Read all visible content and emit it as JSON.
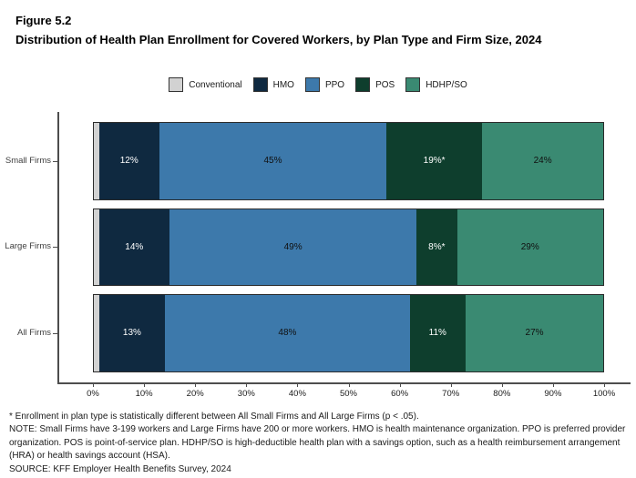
{
  "figure": {
    "number": "Figure 5.2",
    "title": "Distribution of Health Plan Enrollment for Covered Workers, by Plan Type and Firm Size, 2024"
  },
  "legend": [
    {
      "label": "Conventional",
      "color": "#d2d2d2"
    },
    {
      "label": "HMO",
      "color": "#0f2940"
    },
    {
      "label": "PPO",
      "color": "#3d79ab"
    },
    {
      "label": "POS",
      "color": "#0e3e2d"
    },
    {
      "label": "HDHP/SO",
      "color": "#3a8a72"
    }
  ],
  "chart_data": {
    "type": "bar",
    "orientation": "horizontal-stacked",
    "title": "Distribution of Health Plan Enrollment for Covered Workers, by Plan Type and Firm Size, 2024",
    "categories": [
      "Small Firms",
      "Large Firms",
      "All Firms"
    ],
    "series": [
      {
        "name": "Conventional",
        "color": "#d2d2d2",
        "text_color": "#1a1a1a",
        "values": [
          1,
          1,
          1
        ],
        "labels": [
          "",
          "",
          ""
        ]
      },
      {
        "name": "HMO",
        "color": "#0f2940",
        "text_color": "#ffffff",
        "values": [
          12,
          14,
          13
        ],
        "labels": [
          "12%",
          "14%",
          "13%"
        ]
      },
      {
        "name": "PPO",
        "color": "#3d79ab",
        "text_color": "#101010",
        "values": [
          45,
          49,
          48
        ],
        "labels": [
          "45%",
          "49%",
          "48%"
        ]
      },
      {
        "name": "POS",
        "color": "#0e3e2d",
        "text_color": "#ffffff",
        "values": [
          19,
          8,
          11
        ],
        "labels": [
          "19%*",
          "8%*",
          "11%"
        ]
      },
      {
        "name": "HDHP/SO",
        "color": "#3a8a72",
        "text_color": "#101010",
        "values": [
          24,
          29,
          27
        ],
        "labels": [
          "24%",
          "29%",
          "27%"
        ]
      }
    ],
    "xlabel": "",
    "ylabel": "",
    "xlim": [
      0,
      100
    ],
    "x_ticks": [
      "0%",
      "10%",
      "20%",
      "30%",
      "40%",
      "50%",
      "60%",
      "70%",
      "80%",
      "90%",
      "100%"
    ],
    "grid": false,
    "legend_position": "top"
  },
  "notes": {
    "asterisk": "* Enrollment in plan type is statistically different between All Small Firms and All Large Firms (p < .05).",
    "note": "NOTE: Small Firms have 3-199 workers and Large Firms have 200 or more workers. HMO is health maintenance organization. PPO is preferred provider organization. POS is point-of-service plan. HDHP/SO is high-deductible health plan with a savings option, such as a health reimbursement arrangement (HRA) or health savings account (HSA).",
    "source": "SOURCE: KFF Employer Health Benefits Survey, 2024"
  }
}
